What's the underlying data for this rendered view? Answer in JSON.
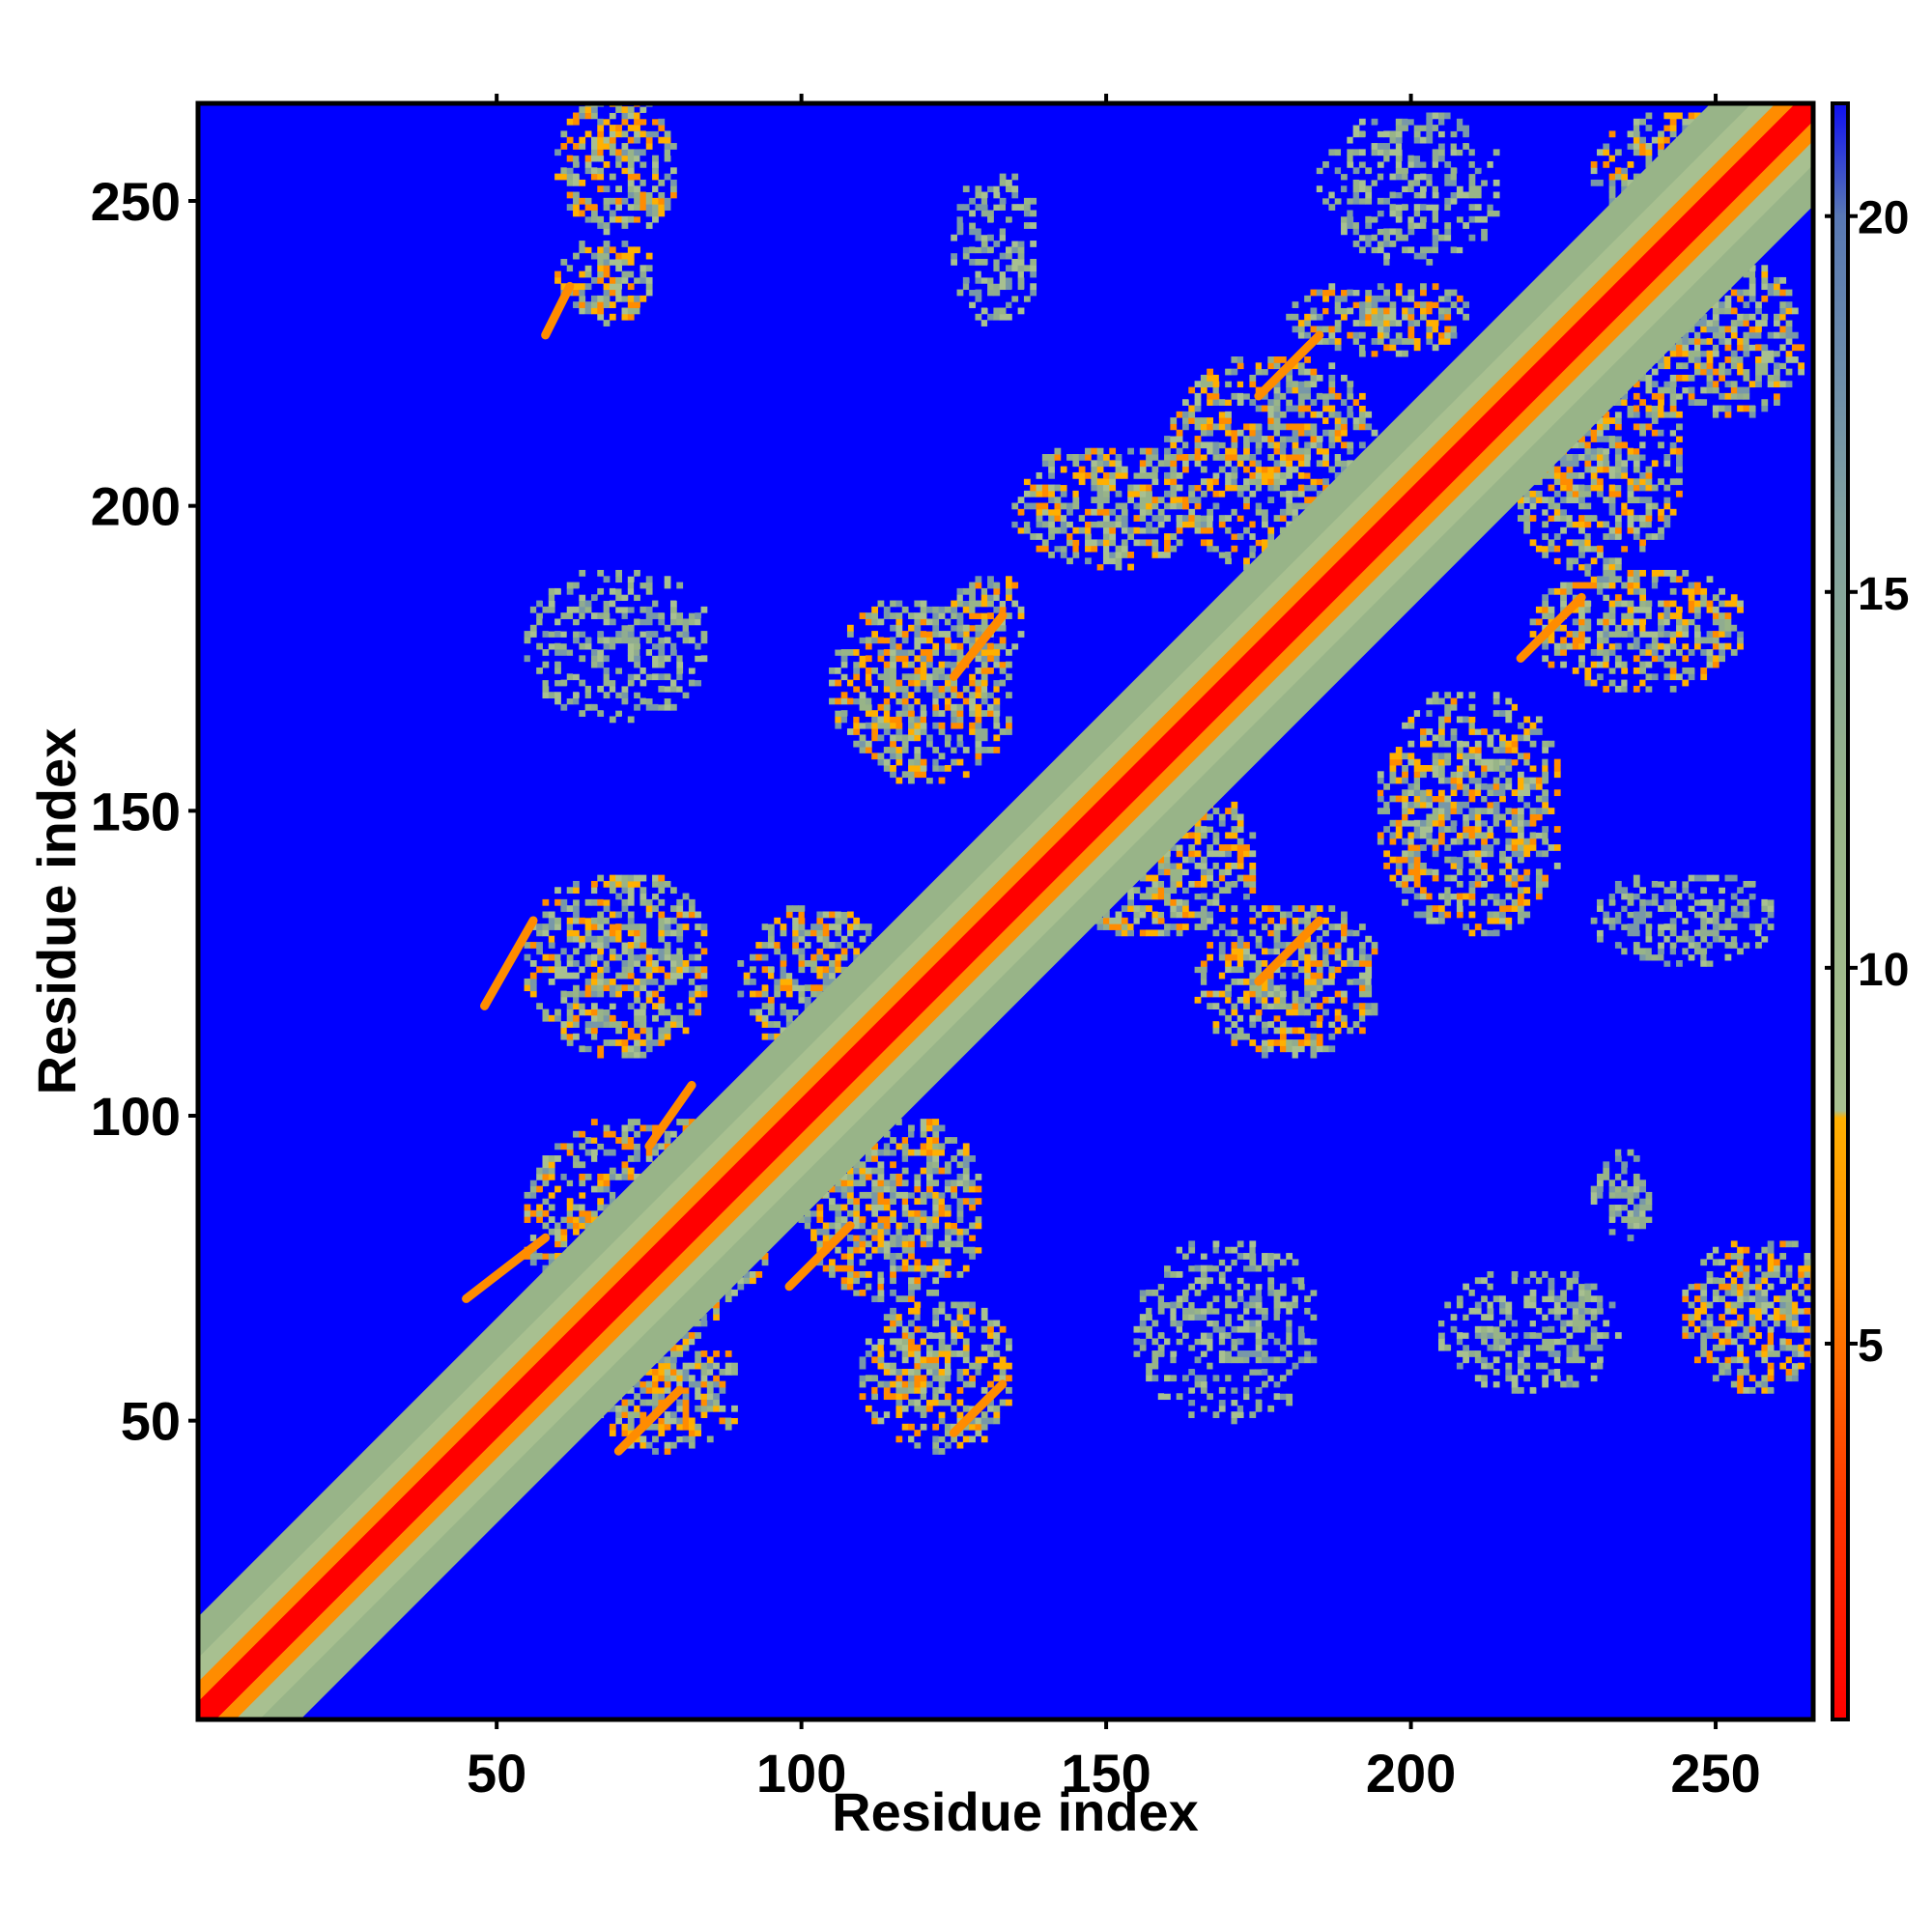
{
  "chart_data": {
    "type": "heatmap",
    "title": "",
    "xlabel": "Residue index",
    "ylabel": "Residue index",
    "xlim": [
      1,
      266
    ],
    "ylim": [
      1,
      266
    ],
    "x_ticks": [
      50,
      100,
      150,
      200,
      250
    ],
    "y_ticks": [
      50,
      100,
      150,
      200,
      250
    ],
    "colorbar": {
      "range": [
        0,
        21.5
      ],
      "ticks": [
        5,
        10,
        15,
        20
      ],
      "stops": [
        {
          "value": 0,
          "color": "#ff0000"
        },
        {
          "value": 3,
          "color": "#ff3a00"
        },
        {
          "value": 6,
          "color": "#ff8c00"
        },
        {
          "value": 8,
          "color": "#ffb000"
        },
        {
          "value": 8.1,
          "color": "#a8c090"
        },
        {
          "value": 12,
          "color": "#98b488"
        },
        {
          "value": 16,
          "color": "#80a0a0"
        },
        {
          "value": 20,
          "color": "#5878b4"
        },
        {
          "value": 21.5,
          "color": "#1010f0"
        }
      ],
      "background_color": "#0000ff"
    },
    "contact_blocks": [
      {
        "x": 60,
        "y": 245,
        "w": 20,
        "h": 22,
        "level": "mid"
      },
      {
        "x": 60,
        "y": 230,
        "w": 16,
        "h": 14,
        "level": "mid"
      },
      {
        "x": 125,
        "y": 230,
        "w": 14,
        "h": 25,
        "level": "low"
      },
      {
        "x": 185,
        "y": 240,
        "w": 30,
        "h": 25,
        "level": "low"
      },
      {
        "x": 230,
        "y": 245,
        "w": 35,
        "h": 20,
        "level": "mid"
      },
      {
        "x": 180,
        "y": 225,
        "w": 30,
        "h": 12,
        "level": "mid"
      },
      {
        "x": 215,
        "y": 190,
        "w": 30,
        "h": 40,
        "level": "mid"
      },
      {
        "x": 240,
        "y": 215,
        "w": 25,
        "h": 25,
        "level": "mid"
      },
      {
        "x": 135,
        "y": 190,
        "w": 30,
        "h": 20,
        "level": "mid"
      },
      {
        "x": 160,
        "y": 190,
        "w": 35,
        "h": 35,
        "level": "mid"
      },
      {
        "x": 55,
        "y": 165,
        "w": 30,
        "h": 25,
        "level": "low"
      },
      {
        "x": 105,
        "y": 155,
        "w": 30,
        "h": 30,
        "level": "mid"
      },
      {
        "x": 125,
        "y": 175,
        "w": 12,
        "h": 14,
        "level": "mid"
      },
      {
        "x": 220,
        "y": 170,
        "w": 35,
        "h": 20,
        "level": "mid"
      },
      {
        "x": 195,
        "y": 130,
        "w": 30,
        "h": 40,
        "level": "mid"
      },
      {
        "x": 140,
        "y": 130,
        "w": 35,
        "h": 25,
        "level": "mid"
      },
      {
        "x": 165,
        "y": 110,
        "w": 30,
        "h": 25,
        "level": "mid"
      },
      {
        "x": 230,
        "y": 125,
        "w": 30,
        "h": 15,
        "level": "low"
      },
      {
        "x": 55,
        "y": 110,
        "w": 30,
        "h": 30,
        "level": "mid"
      },
      {
        "x": 55,
        "y": 65,
        "w": 40,
        "h": 35,
        "level": "mid"
      },
      {
        "x": 90,
        "y": 110,
        "w": 25,
        "h": 25,
        "level": "mid"
      },
      {
        "x": 100,
        "y": 70,
        "w": 30,
        "h": 30,
        "level": "mid"
      },
      {
        "x": 110,
        "y": 45,
        "w": 25,
        "h": 25,
        "level": "mid"
      },
      {
        "x": 65,
        "y": 45,
        "w": 25,
        "h": 20,
        "level": "mid"
      },
      {
        "x": 155,
        "y": 50,
        "w": 30,
        "h": 30,
        "level": "low"
      },
      {
        "x": 205,
        "y": 55,
        "w": 30,
        "h": 20,
        "level": "low"
      },
      {
        "x": 245,
        "y": 55,
        "w": 25,
        "h": 25,
        "level": "mid"
      },
      {
        "x": 230,
        "y": 80,
        "w": 10,
        "h": 15,
        "level": "low"
      }
    ],
    "streaks": [
      {
        "x1": 70,
        "y1": 45,
        "x2": 80,
        "y2": 55
      },
      {
        "x1": 125,
        "y1": 48,
        "x2": 133,
        "y2": 56
      },
      {
        "x1": 45,
        "y1": 70,
        "x2": 58,
        "y2": 80
      },
      {
        "x1": 48,
        "y1": 118,
        "x2": 56,
        "y2": 132
      },
      {
        "x1": 75,
        "y1": 95,
        "x2": 82,
        "y2": 105
      },
      {
        "x1": 98,
        "y1": 72,
        "x2": 108,
        "y2": 82
      },
      {
        "x1": 175,
        "y1": 122,
        "x2": 185,
        "y2": 132
      },
      {
        "x1": 125,
        "y1": 172,
        "x2": 133,
        "y2": 182
      },
      {
        "x1": 175,
        "y1": 218,
        "x2": 185,
        "y2": 228
      },
      {
        "x1": 218,
        "y1": 175,
        "x2": 228,
        "y2": 185
      },
      {
        "x1": 58,
        "y1": 228,
        "x2": 62,
        "y2": 236
      }
    ]
  }
}
